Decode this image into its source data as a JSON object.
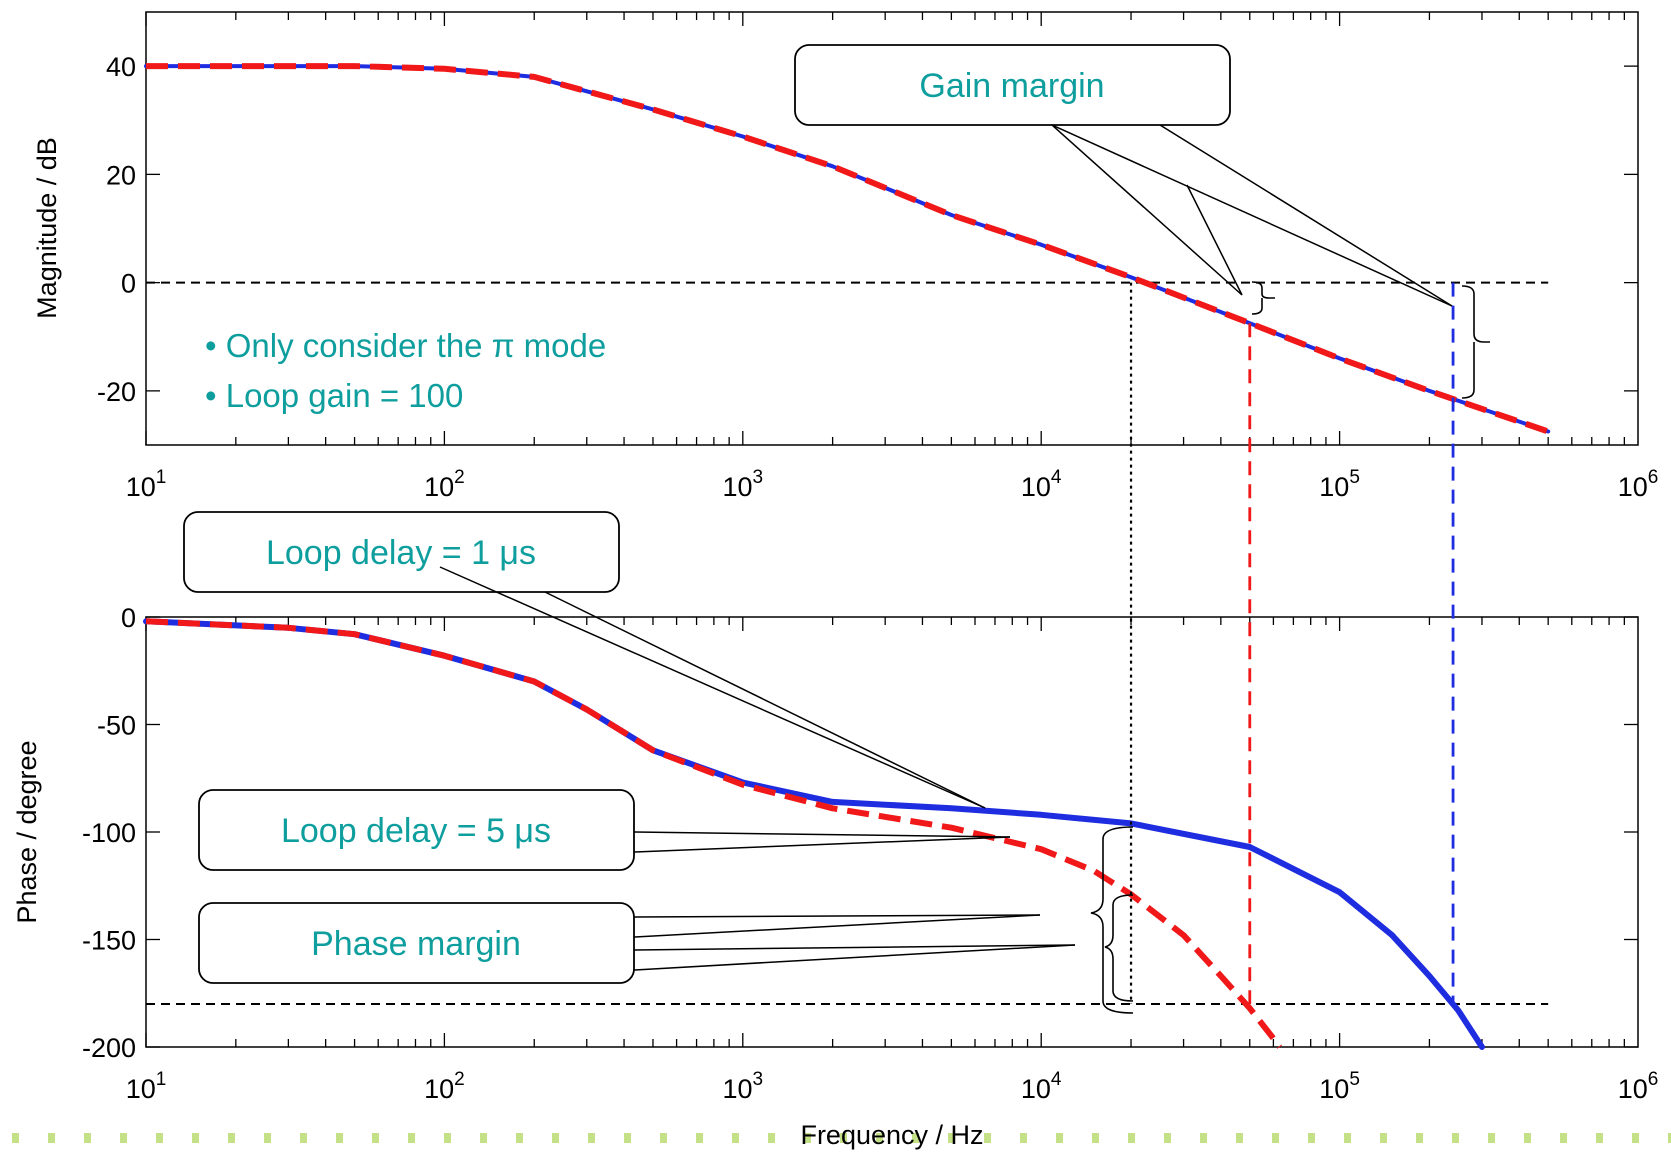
{
  "colors": {
    "series_1us": "#1f2de0",
    "series_5us": "#f01818",
    "annotation_text": "#0f9e9e",
    "axis": "#000000",
    "footer_dots": "#b7d96a"
  },
  "chart_data": [
    {
      "type": "line",
      "panel": "magnitude",
      "ylabel": "Magnitude / dB",
      "xlabel": "",
      "xscale": "log",
      "xlim": [
        10,
        1000000
      ],
      "ylim": [
        -30,
        50
      ],
      "yticks": [
        -20,
        0,
        20,
        40
      ],
      "x_tick_labels": [
        {
          "base": "10",
          "exp": "1"
        },
        {
          "base": "10",
          "exp": "2"
        },
        {
          "base": "10",
          "exp": "3"
        },
        {
          "base": "10",
          "exp": "4"
        },
        {
          "base": "10",
          "exp": "5"
        },
        {
          "base": "10",
          "exp": "6"
        }
      ],
      "series": [
        {
          "key": "1us",
          "style": "solid",
          "x": [
            10,
            50,
            100,
            200,
            500,
            1000,
            2000,
            5000,
            10000,
            20000,
            50000,
            100000,
            200000,
            500000
          ],
          "y": [
            40,
            40,
            39.5,
            38,
            32,
            27,
            21.5,
            12.5,
            7,
            1,
            -7.5,
            -14,
            -20,
            -27.5
          ]
        },
        {
          "key": "5us",
          "style": "dashed",
          "x": [
            10,
            50,
            100,
            200,
            500,
            1000,
            2000,
            5000,
            10000,
            20000,
            50000,
            100000,
            200000,
            500000
          ],
          "y": [
            40,
            40,
            39.5,
            38,
            32,
            27,
            21.5,
            12.5,
            7,
            1,
            -7.5,
            -14,
            -20,
            -27.5
          ]
        }
      ],
      "reference_line": {
        "y": 0,
        "x": [
          10,
          500000
        ]
      },
      "annotations": {
        "bullets": [
          "• Only consider the π mode",
          "• Loop gain = 100"
        ],
        "gain_margin_label": "Gain margin"
      }
    },
    {
      "type": "line",
      "panel": "phase",
      "ylabel": "Phase / degree",
      "xlabel": "Frequency / Hz",
      "xscale": "log",
      "xlim": [
        10,
        1000000
      ],
      "ylim": [
        -200,
        0
      ],
      "yticks": [
        -200,
        -150,
        -100,
        -50,
        0
      ],
      "x_tick_labels": [
        {
          "base": "10",
          "exp": "1"
        },
        {
          "base": "10",
          "exp": "2"
        },
        {
          "base": "10",
          "exp": "3"
        },
        {
          "base": "10",
          "exp": "4"
        },
        {
          "base": "10",
          "exp": "5"
        },
        {
          "base": "10",
          "exp": "6"
        }
      ],
      "series": [
        {
          "key": "1us",
          "style": "solid",
          "x": [
            10,
            30,
            50,
            100,
            200,
            300,
            500,
            1000,
            2000,
            5000,
            10000,
            20000,
            50000,
            100000,
            150000,
            200000,
            250000,
            300000
          ],
          "y": [
            -2,
            -5,
            -8,
            -18,
            -30,
            -43,
            -62,
            -77,
            -86,
            -89,
            -92,
            -96,
            -107,
            -128,
            -148,
            -167,
            -183,
            -200
          ]
        },
        {
          "key": "5us",
          "style": "dashed",
          "x": [
            10,
            30,
            50,
            100,
            200,
            300,
            500,
            1000,
            2000,
            5000,
            10000,
            15000,
            20000,
            30000,
            40000,
            50000,
            60000,
            63000
          ],
          "y": [
            -2,
            -5,
            -8,
            -18,
            -30,
            -43,
            -62,
            -78,
            -89,
            -98,
            -108,
            -118,
            -129,
            -148,
            -167,
            -182,
            -196,
            -200
          ]
        }
      ],
      "reference_line": {
        "y": -180,
        "x": [
          10,
          500000
        ]
      },
      "annotations": {
        "delay_1us_label": "Loop delay = 1 μs",
        "delay_5us_label": "Loop delay = 5 μs",
        "phase_margin_label": "Phase margin"
      }
    }
  ],
  "markers": {
    "crossover_freq": 20000,
    "phase_crossover_5us": 50000,
    "phase_crossover_1us": 240000,
    "gain_margin_5us_db": -7.5,
    "gain_margin_1us_db": -20.5,
    "phase_at_crossover_1us": -97,
    "phase_at_crossover_5us": -129
  }
}
